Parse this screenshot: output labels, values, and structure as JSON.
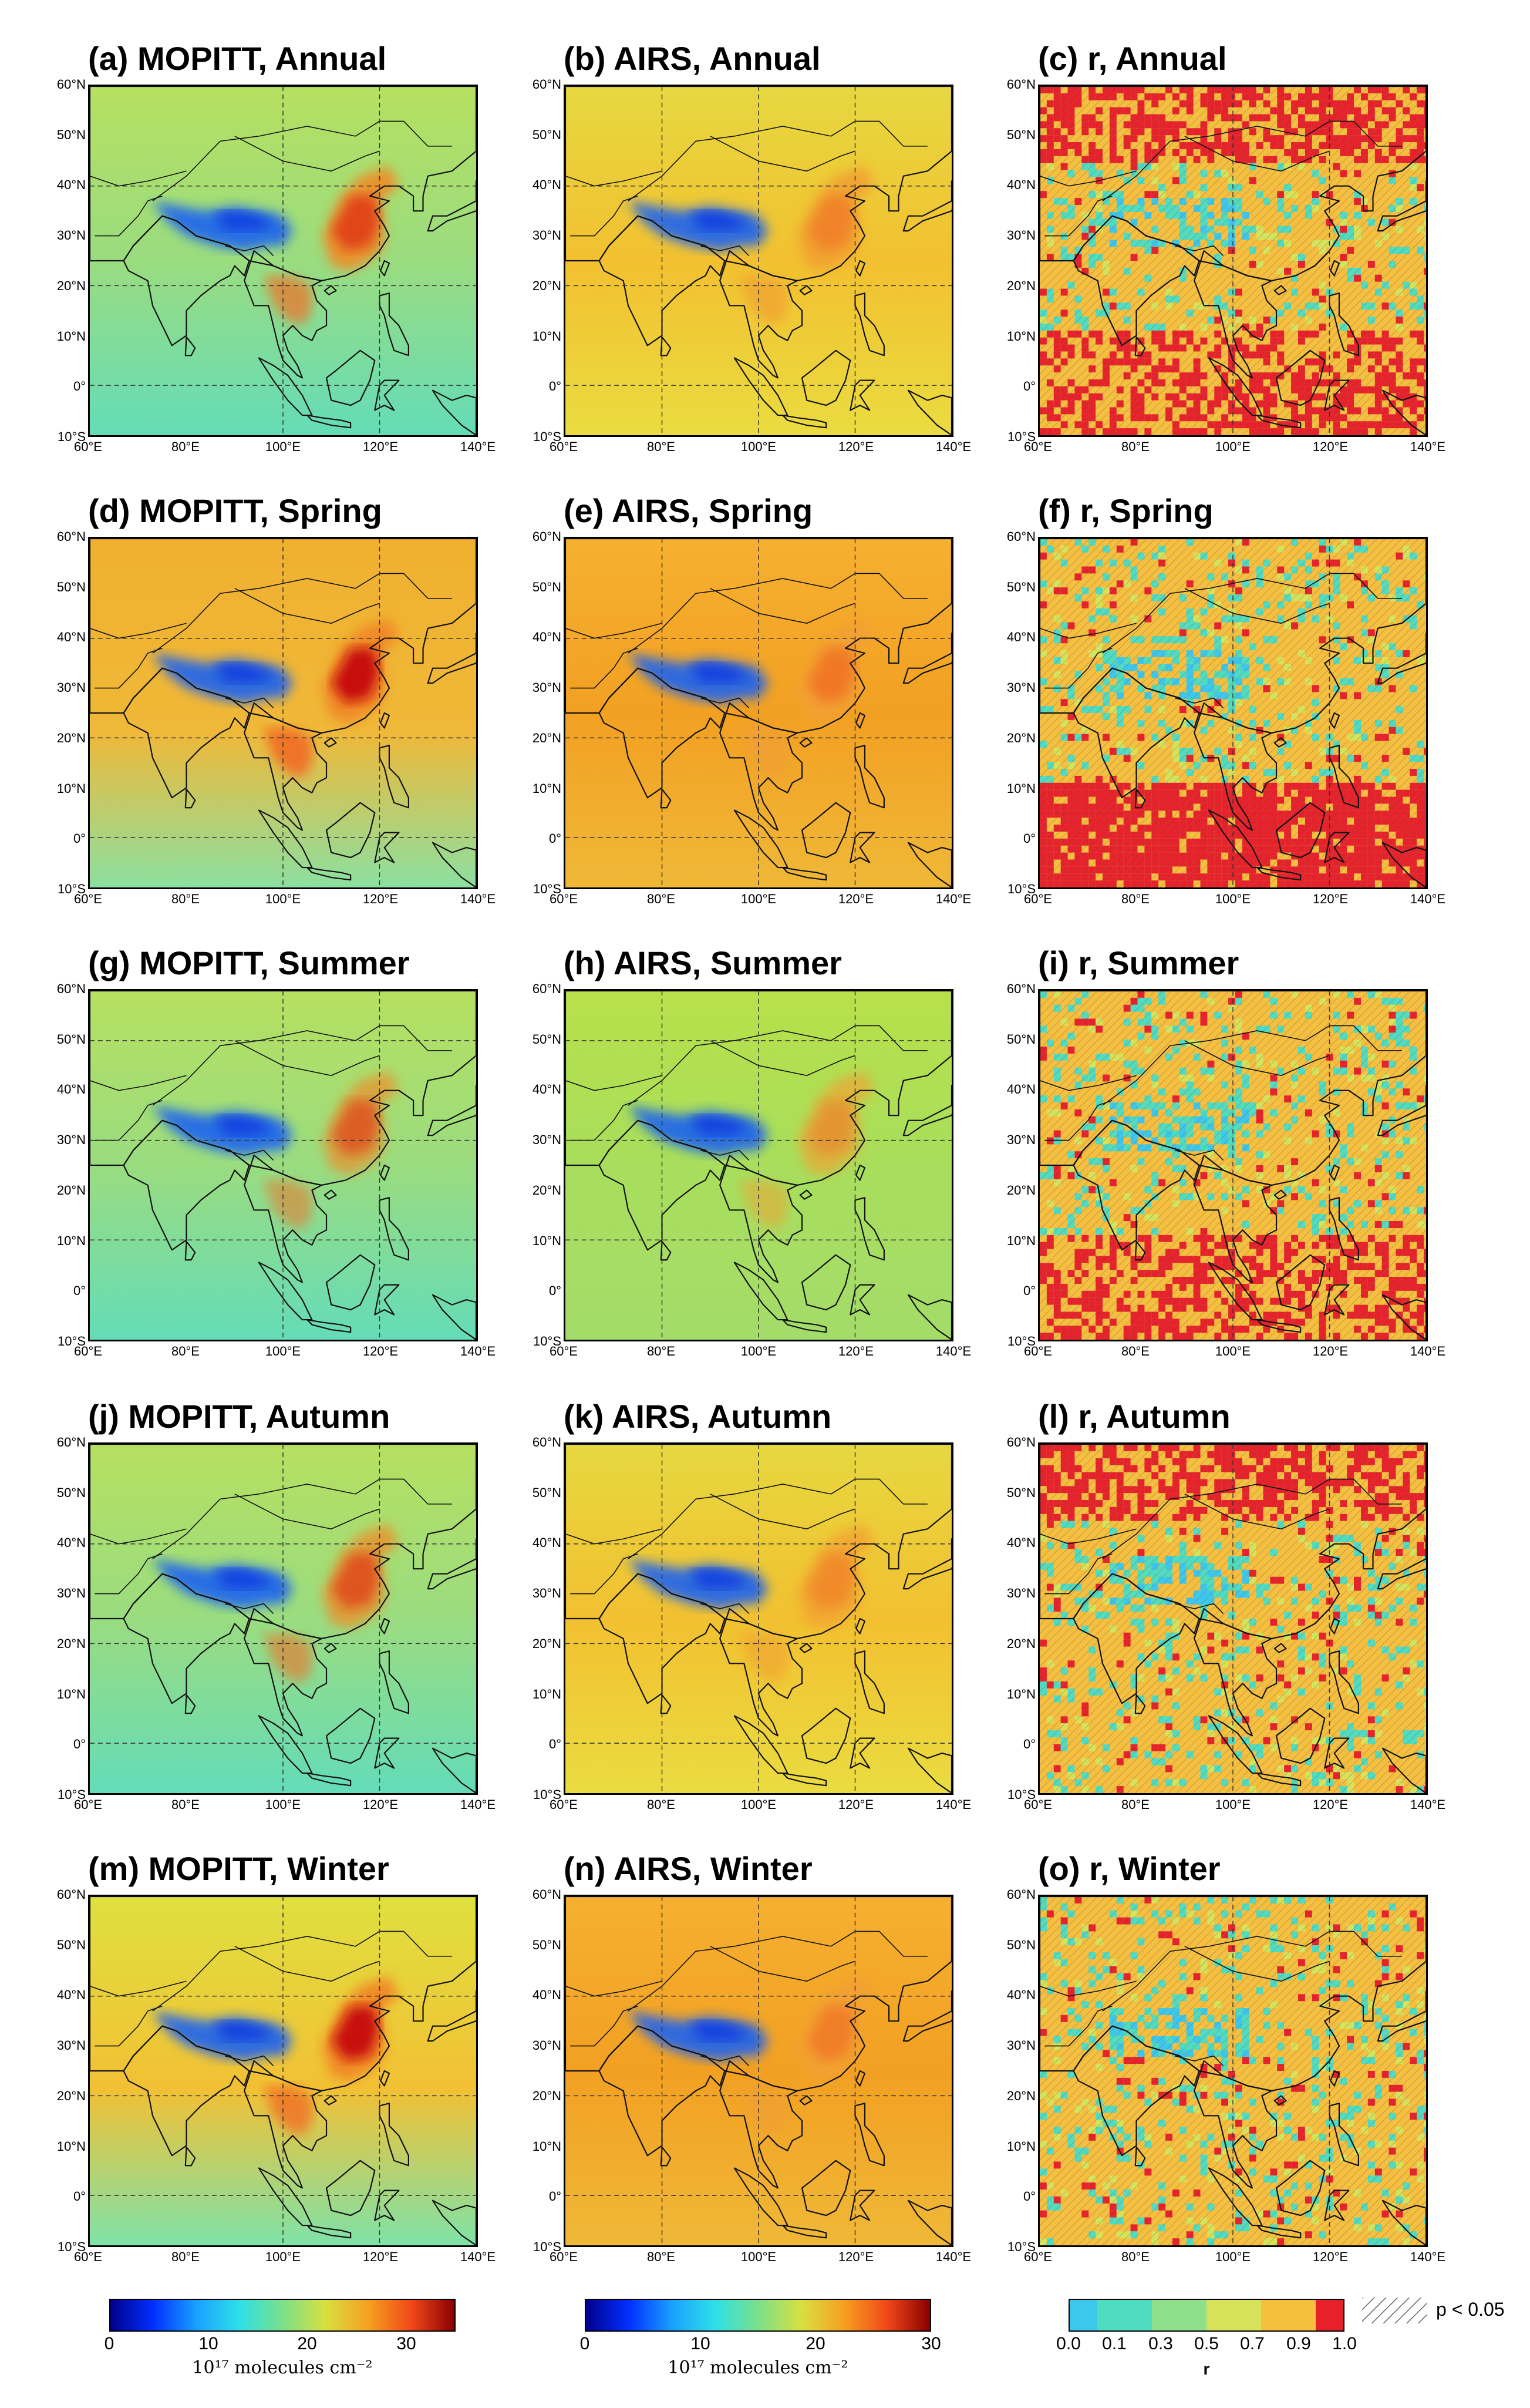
{
  "figure": {
    "lat_labels": [
      "60°N",
      "50°N",
      "40°N",
      "30°N",
      "20°N",
      "10°N",
      "0°",
      "10°S"
    ],
    "lon_labels": [
      "60°E",
      "80°E",
      "100°E",
      "120°E",
      "140°E"
    ],
    "panels": [
      {
        "id": "a",
        "title": "(a) MOPITT, Annual",
        "kind": "mopitt",
        "season": "annual"
      },
      {
        "id": "b",
        "title": "(b) AIRS, Annual",
        "kind": "airs",
        "season": "annual"
      },
      {
        "id": "c",
        "title": "(c) r, Annual",
        "kind": "r",
        "season": "annual"
      },
      {
        "id": "d",
        "title": "(d) MOPITT, Spring",
        "kind": "mopitt",
        "season": "spring"
      },
      {
        "id": "e",
        "title": "(e) AIRS, Spring",
        "kind": "airs",
        "season": "spring"
      },
      {
        "id": "f",
        "title": "(f) r, Spring",
        "kind": "r",
        "season": "spring"
      },
      {
        "id": "g",
        "title": "(g) MOPITT, Summer",
        "kind": "mopitt",
        "season": "summer"
      },
      {
        "id": "h",
        "title": "(h) AIRS, Summer",
        "kind": "airs",
        "season": "summer"
      },
      {
        "id": "i",
        "title": "(i) r, Summer",
        "kind": "r",
        "season": "summer"
      },
      {
        "id": "j",
        "title": "(j) MOPITT, Autumn",
        "kind": "mopitt",
        "season": "autumn"
      },
      {
        "id": "k",
        "title": "(k) AIRS, Autumn",
        "kind": "airs",
        "season": "autumn"
      },
      {
        "id": "l",
        "title": "(l) r, Autumn",
        "kind": "r",
        "season": "autumn"
      },
      {
        "id": "m",
        "title": "(m) MOPITT, Winter",
        "kind": "mopitt",
        "season": "winter"
      },
      {
        "id": "n",
        "title": "(n) AIRS, Winter",
        "kind": "airs",
        "season": "winter"
      },
      {
        "id": "o",
        "title": "(o) r, Winter",
        "kind": "r",
        "season": "winter"
      }
    ],
    "colorbars": {
      "mopitt": {
        "ticks": [
          "0",
          "10",
          "20",
          "30"
        ],
        "range": [
          0,
          35
        ],
        "unit": "10¹⁷ molecules cm⁻²"
      },
      "airs": {
        "ticks": [
          "0",
          "10",
          "20",
          "30"
        ],
        "range": [
          0,
          30
        ],
        "unit": "10¹⁷ molecules cm⁻²"
      },
      "r": {
        "ticks": [
          "0.0",
          "0.1",
          "0.3",
          "0.5",
          "0.7",
          "0.9",
          "1.0"
        ],
        "label": "r",
        "colors": [
          "#3cc8ec",
          "#4fdcc0",
          "#8ee08a",
          "#d6e35a",
          "#f6bf3e",
          "#e8202a"
        ]
      }
    },
    "significance": {
      "label": "p < 0.05"
    }
  }
}
